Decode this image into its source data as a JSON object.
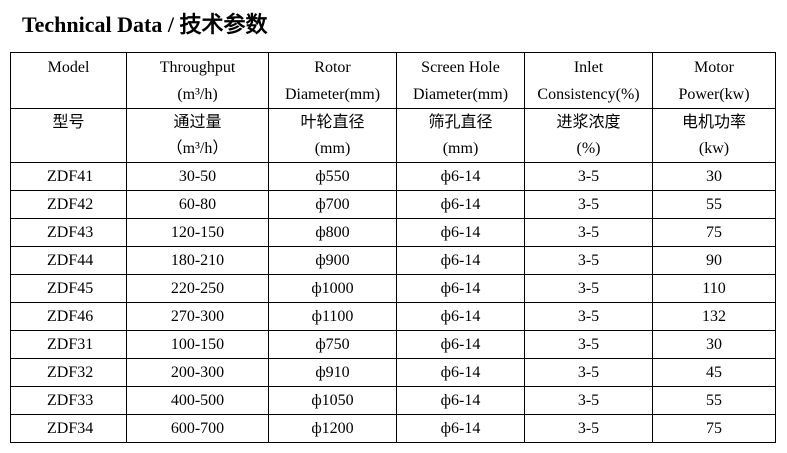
{
  "title": "Technical Data /  技术参数",
  "headers_en": [
    {
      "line1": "Model",
      "line2": ""
    },
    {
      "line1": "Throughput",
      "line2": "(m³/h)"
    },
    {
      "line1": "Rotor",
      "line2": "Diameter(mm)"
    },
    {
      "line1": "Screen Hole",
      "line2": "Diameter(mm)"
    },
    {
      "line1": "Inlet",
      "line2": "Consistency(%)"
    },
    {
      "line1": "Motor",
      "line2": "Power(kw)"
    }
  ],
  "headers_cn": [
    {
      "line1": "型号",
      "line2": ""
    },
    {
      "line1": "通过量",
      "line2": "（m³/h）"
    },
    {
      "line1": "叶轮直径",
      "line2": "(mm)"
    },
    {
      "line1": "筛孔直径",
      "line2": "(mm)"
    },
    {
      "line1": "进浆浓度",
      "line2": "(%)"
    },
    {
      "line1": "电机功率",
      "line2": "(kw)"
    }
  ],
  "rows": [
    {
      "model": "ZDF41",
      "throughput": "30-50",
      "rotor": "ф550",
      "hole": "ф6-14",
      "consistency": "3-5",
      "power": "30"
    },
    {
      "model": "ZDF42",
      "throughput": "60-80",
      "rotor": "ф700",
      "hole": "ф6-14",
      "consistency": "3-5",
      "power": "55"
    },
    {
      "model": "ZDF43",
      "throughput": "120-150",
      "rotor": "ф800",
      "hole": "ф6-14",
      "consistency": "3-5",
      "power": "75"
    },
    {
      "model": "ZDF44",
      "throughput": "180-210",
      "rotor": "ф900",
      "hole": "ф6-14",
      "consistency": "3-5",
      "power": "90"
    },
    {
      "model": "ZDF45",
      "throughput": "220-250",
      "rotor": "ф1000",
      "hole": "ф6-14",
      "consistency": "3-5",
      "power": "110"
    },
    {
      "model": "ZDF46",
      "throughput": "270-300",
      "rotor": "ф1100",
      "hole": "ф6-14",
      "consistency": "3-5",
      "power": "132"
    },
    {
      "model": "ZDF31",
      "throughput": "100-150",
      "rotor": "ф750",
      "hole": "ф6-14",
      "consistency": "3-5",
      "power": "30"
    },
    {
      "model": "ZDF32",
      "throughput": "200-300",
      "rotor": "ф910",
      "hole": "ф6-14",
      "consistency": "3-5",
      "power": "45"
    },
    {
      "model": "ZDF33",
      "throughput": "400-500",
      "rotor": "ф1050",
      "hole": "ф6-14",
      "consistency": "3-5",
      "power": "55"
    },
    {
      "model": "ZDF34",
      "throughput": "600-700",
      "rotor": "ф1200",
      "hole": "ф6-14",
      "consistency": "3-5",
      "power": "75"
    }
  ]
}
